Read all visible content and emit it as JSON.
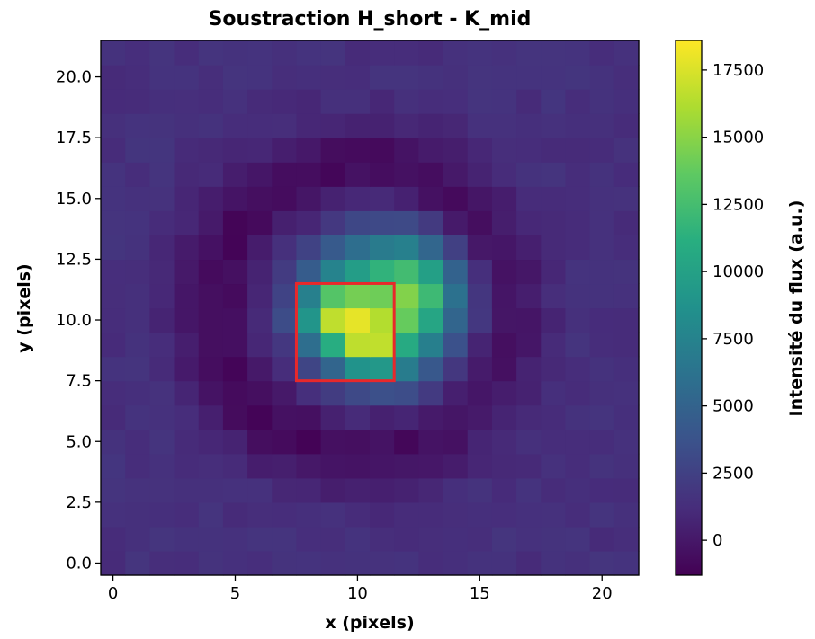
{
  "chart_data": {
    "type": "heatmap",
    "title": "Soustraction H_short - K_mid",
    "xlabel": "x (pixels)",
    "ylabel": "y (pixels)",
    "colorbar_label": "Intensité du flux (a.u.)",
    "colormap": "viridis",
    "vmin": -1300,
    "vmax": 18600,
    "xlim": [
      -0.5,
      21.5
    ],
    "ylim": [
      -0.5,
      21.5
    ],
    "x_ticks": [
      "0",
      "5",
      "10",
      "15",
      "20"
    ],
    "y_ticks": [
      "0.0",
      "2.5",
      "5.0",
      "7.5",
      "10.0",
      "12.5",
      "15.0",
      "17.5",
      "20.0"
    ],
    "colorbar_ticks": [
      "0",
      "2500",
      "5000",
      "7500",
      "10000",
      "12500",
      "15000",
      "17500"
    ],
    "grid": "off",
    "grid_size": [
      22,
      22
    ],
    "model": {
      "background": 1400,
      "noise": 350,
      "ring_dip": {
        "center": [
          10,
          10.5
        ],
        "radius": 5.8,
        "width": 1.3,
        "depth": -2300
      },
      "core": [
        {
          "x": 11.3,
          "y": 10.5,
          "amp": 12000,
          "sigma": 2.0
        },
        {
          "x": 9.0,
          "y": 10.2,
          "amp": 9000,
          "sigma": 0.9
        },
        {
          "x": 10.5,
          "y": 9.0,
          "amp": 7000,
          "sigma": 0.8
        },
        {
          "x": 12.5,
          "y": 11.5,
          "amp": 3500,
          "sigma": 0.9
        }
      ]
    },
    "annotation": {
      "type": "rectangle",
      "color": "#e8282b",
      "x_range": [
        7.5,
        11.5
      ],
      "y_range": [
        7.5,
        11.5
      ]
    }
  }
}
